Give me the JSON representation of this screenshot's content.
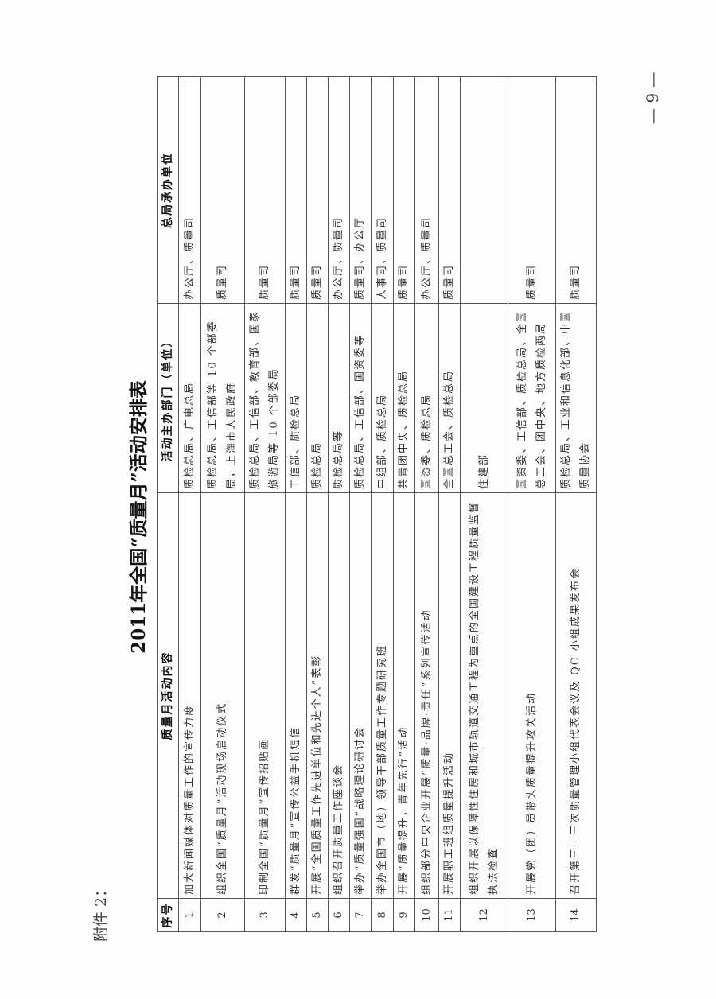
{
  "attachment_label": "附件 2：",
  "title": "2011年全国“质量月”活动安排表",
  "page_number": "— 9 —",
  "table": {
    "headers": [
      "序号",
      "质量月活动内容",
      "活动主办部门（单位）",
      "总局承办单位"
    ],
    "rows": [
      {
        "no": "1",
        "content": "加大新闻媒体对质量工作的宣传力度",
        "organizer": "质检总局、广电总局",
        "undertaker": "办公厅、质量司"
      },
      {
        "no": "2",
        "content": "组织全国“质量月”活动现场启动仪式",
        "organizer": "质检总局、工信部等 10 个部委局，上海市人民政府",
        "undertaker": "质量司"
      },
      {
        "no": "3",
        "content": "印制全国“质量月”宣传招贴画",
        "organizer": "质检总局、工信部、教育部、国家旅游局等 10 个部委局",
        "undertaker": "质量司"
      },
      {
        "no": "4",
        "content": "群发“质量月”宣传公益手机短信",
        "organizer": "工信部、质检总局",
        "undertaker": "质量司"
      },
      {
        "no": "5",
        "content": "开展“全国质量工作先进单位和先进个人”表彰",
        "organizer": "质检总局",
        "undertaker": "质量司"
      },
      {
        "no": "6",
        "content": "组织召开质量工作座谈会",
        "organizer": "质检总局等",
        "undertaker": "办公厅、质量司"
      },
      {
        "no": "7",
        "content": "举办“质量强国”战略理论研讨会",
        "organizer": "质检总局、工信部、国资委等",
        "undertaker": "质量司、办公厅"
      },
      {
        "no": "8",
        "content": "举办全国市（地）领导干部质量工作专题研究班",
        "organizer": "中组部、质检总局",
        "undertaker": "人事司、质量司"
      },
      {
        "no": "9",
        "content": "开展“质量提升，青年先行”活动",
        "organizer": "共青团中央、质检总局",
        "undertaker": "质量司"
      },
      {
        "no": "10",
        "content": "组织部分中央企业开展“质量·品牌·责任”系列宣传活动",
        "organizer": "国资委、质检总局",
        "undertaker": "办公厅、质量司"
      },
      {
        "no": "11",
        "content": "开展职工班组质量提升活动",
        "organizer": "全国总工会、质检总局",
        "undertaker": "质量司"
      },
      {
        "no": "12",
        "content": "组织开展以保障性住房和城市轨道交通工程为重点的全国建设工程质量监督执法检查",
        "organizer": "住建部",
        "undertaker": ""
      },
      {
        "no": "13",
        "content": "开展党（团）员带头质量提升攻关活动",
        "organizer": "国资委、工信部、质检总局、全国总工会、团中央、地方质检两局",
        "undertaker": "质量司"
      },
      {
        "no": "14",
        "content": "召开第三十三次质量管理小组代表会议及 QC 小组成果发布会",
        "organizer": "质检总局、工业和信息化部、中国质量协会",
        "undertaker": "质量司"
      }
    ]
  }
}
